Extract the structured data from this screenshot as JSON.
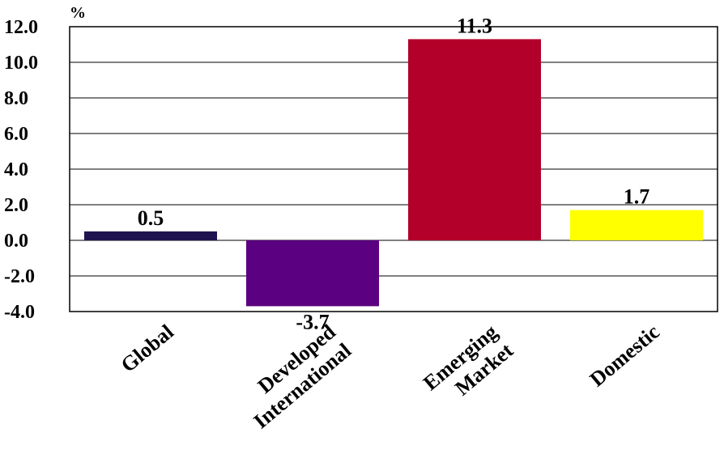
{
  "chart_data": {
    "type": "bar",
    "unit_label": "%",
    "categories": [
      [
        "Global"
      ],
      [
        "Developed",
        "International"
      ],
      [
        "Emerging",
        "Market"
      ],
      [
        "Domestic"
      ]
    ],
    "values": [
      0.5,
      -3.7,
      11.3,
      1.7
    ],
    "value_labels": [
      "0.5",
      "-3.7",
      "11.3",
      "1.7"
    ],
    "colors": [
      "#1f1450",
      "#5b0080",
      "#b3002a",
      "#ffff00"
    ],
    "ylim": [
      -4.0,
      12.0
    ],
    "yticks": [
      "-4.0",
      "-2.0",
      "0.0",
      "2.0",
      "4.0",
      "6.0",
      "8.0",
      "10.0",
      "12.0"
    ],
    "ytick_values": [
      -4,
      -2,
      0,
      2,
      4,
      6,
      8,
      10,
      12
    ],
    "grid": true,
    "title": "",
    "xlabel": "",
    "ylabel": ""
  }
}
